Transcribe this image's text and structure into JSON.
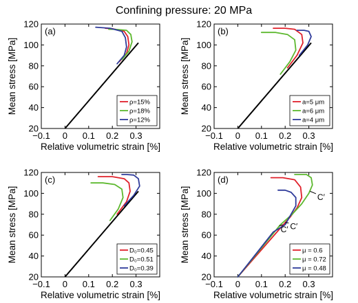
{
  "figure_title": "Confining pressure: 20 MPa",
  "chart_data": [
    {
      "type": "line",
      "panel_label": "(a)",
      "xlabel": "Relative volumetric strain [%]",
      "ylabel": "Mean stress [MPa]",
      "xlim": [
        -0.1,
        0.4
      ],
      "ylim": [
        20,
        120
      ],
      "xticks": [
        -0.1,
        0,
        0.1,
        0.2,
        0.3
      ],
      "xtick_labels": [
        "−0.1",
        "0",
        "0.1",
        "0.2",
        "0.3"
      ],
      "yticks": [
        20,
        40,
        60,
        80,
        100,
        120
      ],
      "ytick_labels": [
        "20",
        "40",
        "60",
        "80",
        "100",
        "120"
      ],
      "grid": false,
      "legend_position": "bottom-right",
      "common_path": [
        [
          0,
          20
        ],
        [
          0.31,
          102
        ]
      ],
      "series": [
        {
          "name": "ρ=15%",
          "color": "#e0202a",
          "points": [
            [
              0.23,
              84
            ],
            [
              0.26,
              92
            ],
            [
              0.27,
              100
            ],
            [
              0.265,
              108
            ],
            [
              0.25,
              113
            ],
            [
              0.2,
              115.5
            ],
            [
              0.17,
              116
            ]
          ]
        },
        {
          "name": "ρ=18%",
          "color": "#5cb82e",
          "points": [
            [
              0.24,
              86
            ],
            [
              0.27,
              94
            ],
            [
              0.283,
              103
            ],
            [
              0.278,
              110
            ],
            [
              0.26,
              114
            ],
            [
              0.21,
              115
            ],
            [
              0.185,
              115
            ]
          ]
        },
        {
          "name": "ρ=12%",
          "color": "#2e3a9a",
          "points": [
            [
              0.22,
              82
            ],
            [
              0.25,
              90
            ],
            [
              0.26,
              98
            ],
            [
              0.255,
              107
            ],
            [
              0.24,
              113
            ],
            [
              0.19,
              116
            ],
            [
              0.13,
              117
            ]
          ]
        }
      ]
    },
    {
      "type": "line",
      "panel_label": "(b)",
      "xlabel": "Relative volumetric strain [%]",
      "ylabel": "Mean stress [MPa]",
      "xlim": [
        -0.1,
        0.4
      ],
      "ylim": [
        20,
        120
      ],
      "xticks": [
        -0.1,
        0,
        0.1,
        0.2,
        0.3
      ],
      "xtick_labels": [
        "−0.1",
        "0",
        "0.1",
        "0.2",
        "0.3"
      ],
      "yticks": [
        20,
        40,
        60,
        80,
        100,
        120
      ],
      "ytick_labels": [
        "20",
        "40",
        "60",
        "80",
        "100",
        "120"
      ],
      "grid": false,
      "legend_position": "bottom-right",
      "common_path": [
        [
          0,
          20
        ],
        [
          0.31,
          102
        ]
      ],
      "series": [
        {
          "name": "a=5 μm",
          "color": "#e0202a",
          "points": [
            [
              0.21,
              78
            ],
            [
              0.25,
              90
            ],
            [
              0.275,
              102
            ],
            [
              0.27,
              110
            ],
            [
              0.24,
              115
            ],
            [
              0.2,
              116
            ],
            [
              0.15,
              116
            ]
          ]
        },
        {
          "name": "a=6 μm",
          "color": "#5cb82e",
          "points": [
            [
              0.18,
              72
            ],
            [
              0.22,
              84
            ],
            [
              0.245,
              95
            ],
            [
              0.24,
              105
            ],
            [
              0.21,
              110
            ],
            [
              0.16,
              112
            ],
            [
              0.1,
              112
            ]
          ]
        },
        {
          "name": "a=4 μm",
          "color": "#2e3a9a",
          "points": [
            [
              0.26,
              90
            ],
            [
              0.295,
              100
            ],
            [
              0.31,
              108
            ],
            [
              0.3,
              113
            ],
            [
              0.28,
              114
            ],
            [
              0.25,
              114
            ]
          ]
        }
      ]
    },
    {
      "type": "line",
      "panel_label": "(c)",
      "xlabel": "Relative volumetric strain [%]",
      "ylabel": "Mean stress [MPa]",
      "xlim": [
        -0.1,
        0.4
      ],
      "ylim": [
        20,
        120
      ],
      "xticks": [
        -0.1,
        0,
        0.1,
        0.2,
        0.3
      ],
      "xtick_labels": [
        "−0.1",
        "0",
        "0.1",
        "0.2",
        "0.3"
      ],
      "yticks": [
        20,
        40,
        60,
        80,
        100,
        120
      ],
      "ytick_labels": [
        "20",
        "40",
        "60",
        "80",
        "100",
        "120"
      ],
      "grid": false,
      "legend_position": "bottom-right",
      "common_path": [
        [
          0,
          20
        ],
        [
          0.31,
          102
        ]
      ],
      "series": [
        {
          "name": "D₀=0.45",
          "color": "#e0202a",
          "points": [
            [
              0.22,
              80
            ],
            [
              0.26,
              92
            ],
            [
              0.275,
              102
            ],
            [
              0.27,
              110
            ],
            [
              0.25,
              114
            ],
            [
              0.2,
              116
            ],
            [
              0.14,
              116
            ]
          ]
        },
        {
          "name": "D₀=0.51",
          "color": "#5cb82e",
          "points": [
            [
              0.19,
              74
            ],
            [
              0.225,
              85
            ],
            [
              0.245,
              96
            ],
            [
              0.24,
              104
            ],
            [
              0.21,
              108.5
            ],
            [
              0.16,
              110
            ],
            [
              0.11,
              110
            ]
          ]
        },
        {
          "name": "D₀=0.39",
          "color": "#2e3a9a",
          "points": [
            [
              0.25,
              88
            ],
            [
              0.29,
              98
            ],
            [
              0.315,
              107
            ],
            [
              0.31,
              114
            ],
            [
              0.29,
              117.5
            ],
            [
              0.26,
              118
            ],
            [
              0.24,
              118
            ]
          ]
        }
      ]
    },
    {
      "type": "line",
      "panel_label": "(d)",
      "xlabel": "Relative volumetric strain [%]",
      "ylabel": "Mean stress [MPa]",
      "xlim": [
        -0.1,
        0.4
      ],
      "ylim": [
        20,
        120
      ],
      "xticks": [
        -0.1,
        0,
        0.1,
        0.2,
        0.3
      ],
      "xtick_labels": [
        "−0.1",
        "0",
        "0.1",
        "0.2",
        "0.3"
      ],
      "yticks": [
        20,
        40,
        60,
        80,
        100,
        120
      ],
      "ytick_labels": [
        "20",
        "40",
        "60",
        "80",
        "100",
        "120"
      ],
      "grid": false,
      "legend_position": "bottom-right",
      "series": [
        {
          "name": "μ = 0.6",
          "color": "#e0202a",
          "points": [
            [
              0,
              20
            ],
            [
              0.2,
              72
            ],
            [
              0.22,
              77
            ],
            [
              0.25,
              86
            ],
            [
              0.27,
              96
            ],
            [
              0.265,
              106
            ],
            [
              0.24,
              113
            ],
            [
              0.19,
              115
            ],
            [
              0.14,
              115
            ]
          ]
        },
        {
          "name": "μ = 0.72",
          "color": "#5cb82e",
          "points": [
            [
              0,
              20
            ],
            [
              0.18,
              70
            ],
            [
              0.23,
              80
            ],
            [
              0.27,
              90
            ],
            [
              0.3,
              100
            ],
            [
              0.315,
              108
            ],
            [
              0.31,
              115
            ],
            [
              0.29,
              118
            ],
            [
              0.24,
              118
            ]
          ]
        },
        {
          "name": "μ = 0.48",
          "color": "#2e3a9a",
          "points": [
            [
              0,
              20
            ],
            [
              0.15,
              63
            ],
            [
              0.2,
              70
            ],
            [
              0.22,
              78
            ],
            [
              0.245,
              88
            ],
            [
              0.245,
              96
            ],
            [
              0.225,
              101
            ],
            [
              0.2,
              103
            ],
            [
              0.17,
              103
            ]
          ]
        }
      ],
      "annotations": [
        {
          "text": "C′",
          "x": 0.33,
          "y": 97,
          "arrow_to": [
            0.305,
            102
          ]
        },
        {
          "text": "C′",
          "x": 0.215,
          "y": 69,
          "arrow_to": [
            0.2,
            72
          ]
        },
        {
          "text": "C′",
          "x": 0.175,
          "y": 66,
          "arrow_to": [
            0.19,
            70
          ]
        }
      ]
    }
  ]
}
